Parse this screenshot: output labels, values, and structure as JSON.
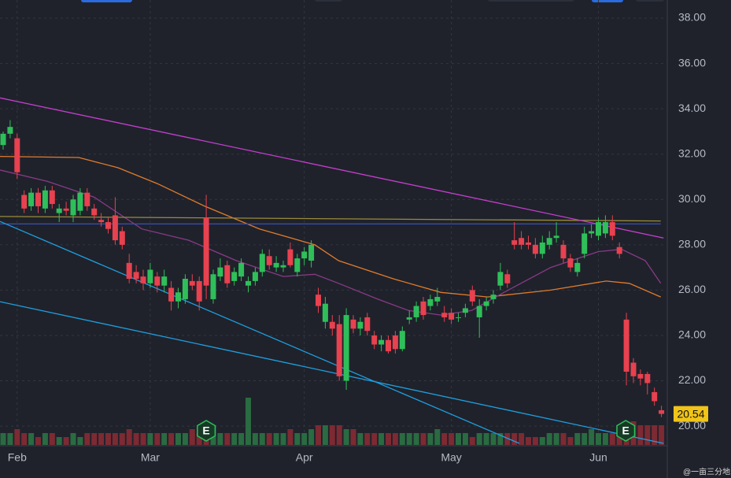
{
  "chart_data": {
    "type": "candlestick",
    "categories": [
      null,
      null,
      "Feb",
      null,
      null,
      null,
      null,
      null,
      null,
      null,
      null,
      null,
      null,
      null,
      null,
      null,
      null,
      null,
      null,
      null,
      null,
      "Mar",
      null,
      null,
      null,
      null,
      null,
      null,
      null,
      null,
      null,
      null,
      null,
      null,
      null,
      null,
      null,
      null,
      null,
      null,
      null,
      null,
      null,
      "Apr",
      null,
      null,
      null,
      null,
      null,
      null,
      null,
      null,
      null,
      null,
      null,
      null,
      null,
      null,
      null,
      null,
      null,
      null,
      null,
      null,
      "May",
      null,
      null,
      null,
      null,
      null,
      null,
      null,
      null,
      null,
      null,
      null,
      null,
      null,
      null,
      null,
      null,
      null,
      null,
      null,
      null,
      "Jun",
      null,
      null,
      null,
      null,
      null,
      null,
      null,
      null,
      null
    ],
    "open": [
      32.4,
      32.9,
      32.7,
      30.2,
      29.7,
      30.3,
      29.6,
      30.4,
      29.4,
      29.6,
      29.3,
      29.5,
      30.3,
      29.6,
      29.1,
      29.0,
      29.3,
      28.6,
      27.2,
      26.8,
      26.6,
      26.3,
      26.6,
      26.2,
      26.1,
      25.5,
      25.6,
      26.4,
      26.4,
      29.2,
      25.6,
      26.6,
      27.1,
      26.4,
      26.6,
      26.2,
      26.4,
      26.8,
      27.5,
      27.0,
      27.0,
      27.8,
      26.8,
      27.4,
      27.3,
      25.8,
      24.6,
      24.6,
      24.5,
      22.0,
      24.7,
      24.3,
      24.8,
      24.0,
      23.6,
      23.8,
      24.0,
      23.4,
      24.7,
      24.8,
      25.5,
      25.3,
      25.5,
      25.0,
      25.0,
      24.8,
      25.0,
      26.0,
      24.8,
      25.3,
      25.6,
      26.2,
      26.7,
      28.2,
      28.3,
      28.1,
      28.0,
      27.6,
      28.0,
      28.3,
      28.0,
      27.4,
      26.8,
      27.6,
      28.5,
      28.4,
      28.5,
      29.0,
      27.9,
      24.7,
      22.8,
      22.3,
      22.3,
      21.5,
      20.7
    ],
    "high": [
      33.0,
      33.5,
      32.9,
      30.4,
      30.5,
      30.5,
      30.6,
      30.6,
      29.8,
      29.9,
      30.2,
      30.5,
      30.5,
      29.8,
      29.4,
      29.2,
      30.1,
      28.8,
      27.6,
      27.1,
      26.9,
      27.2,
      26.8,
      26.9,
      26.4,
      26.1,
      26.7,
      26.7,
      26.6,
      30.2,
      26.9,
      27.4,
      27.3,
      27.0,
      27.4,
      26.6,
      27.0,
      27.8,
      27.8,
      27.5,
      27.3,
      28.1,
      27.6,
      27.9,
      28.2,
      26.1,
      25.7,
      24.9,
      24.9,
      25.2,
      24.9,
      24.8,
      25.0,
      24.2,
      24.0,
      24.0,
      24.2,
      24.4,
      25.1,
      25.5,
      25.7,
      25.8,
      26.1,
      25.3,
      25.2,
      25.0,
      25.4,
      26.2,
      25.6,
      25.7,
      26.0,
      27.2,
      26.9,
      29.0,
      28.6,
      28.4,
      28.3,
      28.4,
      28.6,
      29.0,
      28.2,
      27.6,
      27.4,
      28.8,
      28.9,
      29.2,
      29.3,
      29.3,
      28.1,
      25.0,
      23.0,
      22.5,
      22.4,
      21.7,
      20.9
    ],
    "low": [
      32.2,
      32.7,
      30.9,
      29.4,
      29.5,
      29.4,
      29.4,
      29.6,
      29.0,
      29.3,
      29.0,
      29.3,
      29.5,
      29.1,
      28.8,
      28.5,
      28.0,
      27.8,
      26.3,
      26.3,
      26.0,
      26.1,
      25.9,
      25.9,
      25.1,
      25.2,
      25.4,
      26.0,
      25.1,
      25.6,
      25.4,
      26.4,
      26.1,
      26.2,
      26.4,
      25.9,
      26.2,
      26.6,
      26.9,
      26.8,
      26.8,
      27.0,
      26.6,
      27.1,
      27.0,
      25.0,
      24.3,
      24.0,
      22.0,
      21.6,
      24.1,
      24.0,
      24.0,
      23.4,
      23.3,
      23.2,
      23.2,
      23.3,
      24.5,
      24.6,
      24.7,
      25.1,
      25.3,
      24.6,
      24.5,
      24.6,
      24.8,
      25.3,
      23.9,
      25.1,
      25.4,
      26.0,
      26.1,
      27.8,
      27.8,
      27.8,
      27.4,
      27.4,
      27.8,
      28.1,
      27.2,
      26.8,
      26.6,
      27.4,
      28.3,
      28.2,
      28.3,
      28.2,
      27.4,
      21.8,
      21.9,
      21.8,
      21.4,
      20.9,
      20.4
    ],
    "close": [
      32.9,
      33.2,
      31.2,
      29.6,
      30.3,
      29.7,
      30.4,
      29.8,
      29.6,
      29.5,
      30.0,
      30.3,
      29.7,
      29.3,
      29.0,
      28.7,
      28.2,
      28.0,
      26.5,
      26.5,
      26.3,
      26.9,
      26.2,
      26.6,
      25.5,
      25.9,
      26.5,
      26.2,
      25.5,
      26.2,
      26.7,
      27.0,
      26.3,
      26.8,
      27.2,
      26.4,
      26.8,
      27.6,
      27.1,
      27.2,
      27.1,
      27.1,
      27.4,
      27.7,
      28.0,
      25.3,
      25.4,
      24.3,
      22.2,
      24.9,
      24.3,
      24.6,
      24.2,
      23.6,
      23.8,
      23.3,
      23.4,
      24.2,
      24.8,
      25.3,
      24.9,
      25.6,
      25.7,
      24.8,
      24.7,
      24.8,
      25.2,
      25.5,
      25.3,
      25.5,
      25.8,
      26.8,
      26.3,
      28.0,
      28.0,
      28.0,
      27.6,
      28.1,
      28.3,
      28.4,
      27.4,
      27.0,
      27.2,
      28.5,
      28.6,
      29.0,
      29.0,
      28.4,
      27.6,
      22.4,
      22.2,
      22.1,
      21.9,
      21.1,
      20.54
    ],
    "volume": [
      3,
      3,
      4,
      3,
      3,
      2,
      3,
      3,
      2,
      2,
      3,
      2,
      3,
      3,
      3,
      3,
      3,
      3,
      4,
      3,
      3,
      3,
      3,
      3,
      3,
      3,
      3,
      4,
      3,
      5,
      5,
      3,
      3,
      3,
      3,
      12,
      3,
      3,
      3,
      3,
      3,
      4,
      3,
      3,
      4,
      5,
      5,
      5,
      5,
      4,
      4,
      3,
      3,
      3,
      3,
      3,
      3,
      3,
      3,
      3,
      3,
      3,
      4,
      3,
      3,
      3,
      3,
      2,
      3,
      3,
      3,
      3,
      3,
      3,
      3,
      2,
      2,
      2,
      3,
      3,
      3,
      2,
      3,
      3,
      4,
      3,
      3,
      3,
      4,
      6,
      6,
      5,
      5,
      5,
      5
    ],
    "up_color": "#2fbf5a",
    "down_color": "#e8414f",
    "overlays": [
      {
        "color": "#e07b2c",
        "x": [
          -0.45,
          10.8,
          16.4,
          22,
          28.8,
          36.6,
          44.5,
          47.9,
          55.7,
          62.5,
          69.2,
          78.2,
          86.1,
          89.4,
          93.9
        ],
        "values": [
          31.9,
          31.85,
          31.4,
          30.7,
          29.7,
          28.7,
          28.0,
          27.3,
          26.5,
          25.9,
          25.7,
          26.0,
          26.4,
          26.3,
          25.7
        ]
      },
      {
        "color": "#8a3a86",
        "x": [
          -0.45,
          6.3,
          13,
          19.8,
          26.5,
          33.3,
          40,
          44.5,
          47.9,
          53.5,
          57.9,
          62.5,
          66.9,
          71.5,
          78.2,
          85,
          88.3,
          91.7,
          93.9
        ],
        "values": [
          31.3,
          30.8,
          30.1,
          28.7,
          28.2,
          27.3,
          26.6,
          26.7,
          26.3,
          25.6,
          25.1,
          24.9,
          25.1,
          25.9,
          27.0,
          27.7,
          27.8,
          27.3,
          26.3
        ]
      },
      {
        "color": "#9a8a3a",
        "x": [
          -0.45,
          93.9
        ],
        "values": [
          29.25,
          29.05
        ]
      },
      {
        "color": "#3b4fb0",
        "x": [
          -0.45,
          93.9
        ],
        "values": [
          28.92,
          28.92
        ]
      },
      {
        "color": "#c63ed0",
        "x": [
          -0.45,
          94.3
        ],
        "values": [
          34.48,
          28.3
        ]
      },
      {
        "color": "#1e9fe0",
        "x": [
          -0.45,
          73.7
        ],
        "values": [
          29.03,
          19.24
        ]
      },
      {
        "color": "#1e9fe0",
        "x": [
          -0.45,
          94.3
        ],
        "values": [
          25.49,
          19.24
        ]
      }
    ],
    "events": [
      {
        "x": 29,
        "label": "E"
      },
      {
        "x": 88.9,
        "label": "E"
      }
    ],
    "last_price": 20.54,
    "ylim": [
      19.17,
      38.8
    ],
    "yticks": [
      {
        "value": 20,
        "label": "20.00"
      },
      {
        "value": 22,
        "label": "22.00"
      },
      {
        "value": 24,
        "label": "24.00"
      },
      {
        "value": 26,
        "label": "26.00"
      },
      {
        "value": 28,
        "label": "28.00"
      },
      {
        "value": 30,
        "label": "30.00"
      },
      {
        "value": 32,
        "label": "32.00"
      },
      {
        "value": 34,
        "label": "34.00"
      },
      {
        "value": 36,
        "label": "36.00"
      },
      {
        "value": 38,
        "label": "38.00"
      }
    ],
    "grid": true,
    "watermark": "@一亩三分地"
  }
}
